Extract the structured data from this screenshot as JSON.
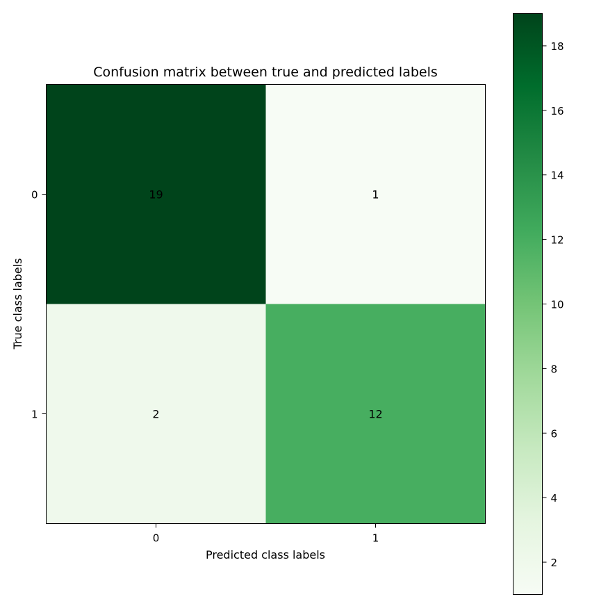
{
  "chart_data": {
    "type": "heatmap",
    "title": "Confusion matrix between true and predicted labels",
    "xlabel": "Predicted class labels",
    "ylabel": "True class labels",
    "x_categories": [
      "0",
      "1"
    ],
    "y_categories": [
      "0",
      "1"
    ],
    "matrix": [
      [
        19,
        1
      ],
      [
        2,
        12
      ]
    ],
    "colormap": "Greens",
    "colorbar": {
      "min": 1,
      "max": 19,
      "ticks": [
        2,
        4,
        6,
        8,
        10,
        12,
        14,
        16,
        18
      ],
      "placement": "right"
    },
    "grid": false
  }
}
